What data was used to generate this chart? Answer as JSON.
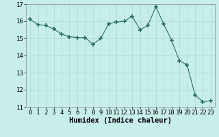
{
  "x": [
    0,
    1,
    2,
    3,
    4,
    5,
    6,
    7,
    8,
    9,
    10,
    11,
    12,
    13,
    14,
    15,
    16,
    17,
    18,
    19,
    20,
    21,
    22,
    23
  ],
  "y": [
    16.1,
    15.8,
    15.75,
    15.55,
    15.25,
    15.1,
    15.05,
    15.05,
    14.65,
    15.0,
    15.85,
    15.95,
    16.0,
    16.3,
    15.5,
    15.75,
    16.85,
    15.85,
    14.9,
    13.7,
    13.45,
    11.7,
    11.3,
    11.35
  ],
  "line_color": "#2a6e62",
  "marker": "+",
  "marker_size": 4,
  "bg_color": "#c8eeea",
  "grid_color": "#b0ddd8",
  "xlabel": "Humidex (Indice chaleur)",
  "ylim": [
    11,
    17
  ],
  "xlim": [
    -0.5,
    23.5
  ],
  "yticks": [
    11,
    12,
    13,
    14,
    15,
    16,
    17
  ],
  "xticks": [
    0,
    1,
    2,
    3,
    4,
    5,
    6,
    7,
    8,
    9,
    10,
    11,
    12,
    13,
    14,
    15,
    16,
    17,
    18,
    19,
    20,
    21,
    22,
    23
  ],
  "xlabel_fontsize": 7.5,
  "tick_fontsize": 6.5
}
